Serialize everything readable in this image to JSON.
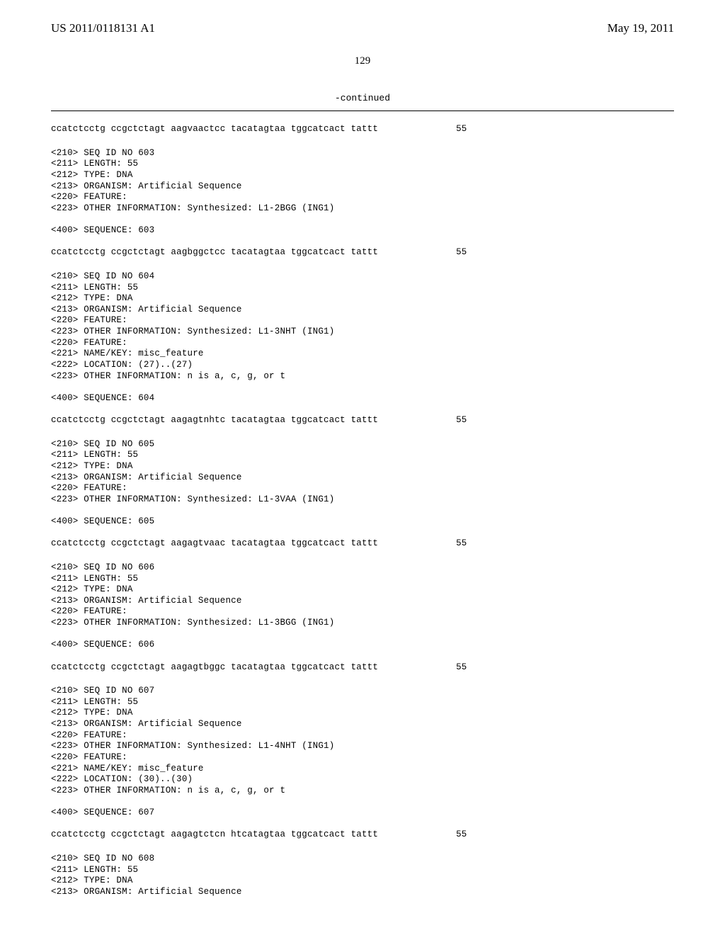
{
  "header": {
    "publication_number": "US 2011/0118131 A1",
    "publication_date": "May 19, 2011"
  },
  "page_number": "129",
  "continued_label": "-continued",
  "seq602": {
    "sequence": "ccatctcctg ccgctctagt aagvaactcc tacatagtaa tggcatcact tattt",
    "length": "55"
  },
  "seq603": {
    "id_line": "<210> SEQ ID NO 603",
    "length_line": "<211> LENGTH: 55",
    "type_line": "<212> TYPE: DNA",
    "organism_line": "<213> ORGANISM: Artificial Sequence",
    "feature_line": "<220> FEATURE:",
    "other_info": "<223> OTHER INFORMATION: Synthesized: L1-2BGG (ING1)",
    "seq_header": "<400> SEQUENCE: 603",
    "sequence": "ccatctcctg ccgctctagt aagbggctcc tacatagtaa tggcatcact tattt",
    "length": "55"
  },
  "seq604": {
    "id_line": "<210> SEQ ID NO 604",
    "length_line": "<211> LENGTH: 55",
    "type_line": "<212> TYPE: DNA",
    "organism_line": "<213> ORGANISM: Artificial Sequence",
    "feature_line": "<220> FEATURE:",
    "other_info": "<223> OTHER INFORMATION: Synthesized: L1-3NHT (ING1)",
    "feature_line2": "<220> FEATURE:",
    "name_key": "<221> NAME/KEY: misc_feature",
    "location": "<222> LOCATION: (27)..(27)",
    "other_info2": "<223> OTHER INFORMATION: n is a, c, g, or t",
    "seq_header": "<400> SEQUENCE: 604",
    "sequence": "ccatctcctg ccgctctagt aagagtnhtc tacatagtaa tggcatcact tattt",
    "length": "55"
  },
  "seq605": {
    "id_line": "<210> SEQ ID NO 605",
    "length_line": "<211> LENGTH: 55",
    "type_line": "<212> TYPE: DNA",
    "organism_line": "<213> ORGANISM: Artificial Sequence",
    "feature_line": "<220> FEATURE:",
    "other_info": "<223> OTHER INFORMATION: Synthesized: L1-3VAA (ING1)",
    "seq_header": "<400> SEQUENCE: 605",
    "sequence": "ccatctcctg ccgctctagt aagagtvaac tacatagtaa tggcatcact tattt",
    "length": "55"
  },
  "seq606": {
    "id_line": "<210> SEQ ID NO 606",
    "length_line": "<211> LENGTH: 55",
    "type_line": "<212> TYPE: DNA",
    "organism_line": "<213> ORGANISM: Artificial Sequence",
    "feature_line": "<220> FEATURE:",
    "other_info": "<223> OTHER INFORMATION: Synthesized: L1-3BGG (ING1)",
    "seq_header": "<400> SEQUENCE: 606",
    "sequence": "ccatctcctg ccgctctagt aagagtbggc tacatagtaa tggcatcact tattt",
    "length": "55"
  },
  "seq607": {
    "id_line": "<210> SEQ ID NO 607",
    "length_line": "<211> LENGTH: 55",
    "type_line": "<212> TYPE: DNA",
    "organism_line": "<213> ORGANISM: Artificial Sequence",
    "feature_line": "<220> FEATURE:",
    "other_info": "<223> OTHER INFORMATION: Synthesized: L1-4NHT (ING1)",
    "feature_line2": "<220> FEATURE:",
    "name_key": "<221> NAME/KEY: misc_feature",
    "location": "<222> LOCATION: (30)..(30)",
    "other_info2": "<223> OTHER INFORMATION: n is a, c, g, or t",
    "seq_header": "<400> SEQUENCE: 607",
    "sequence": "ccatctcctg ccgctctagt aagagtctcn htcatagtaa tggcatcact tattt",
    "length": "55"
  },
  "seq608": {
    "id_line": "<210> SEQ ID NO 608",
    "length_line": "<211> LENGTH: 55",
    "type_line": "<212> TYPE: DNA",
    "organism_line": "<213> ORGANISM: Artificial Sequence"
  }
}
